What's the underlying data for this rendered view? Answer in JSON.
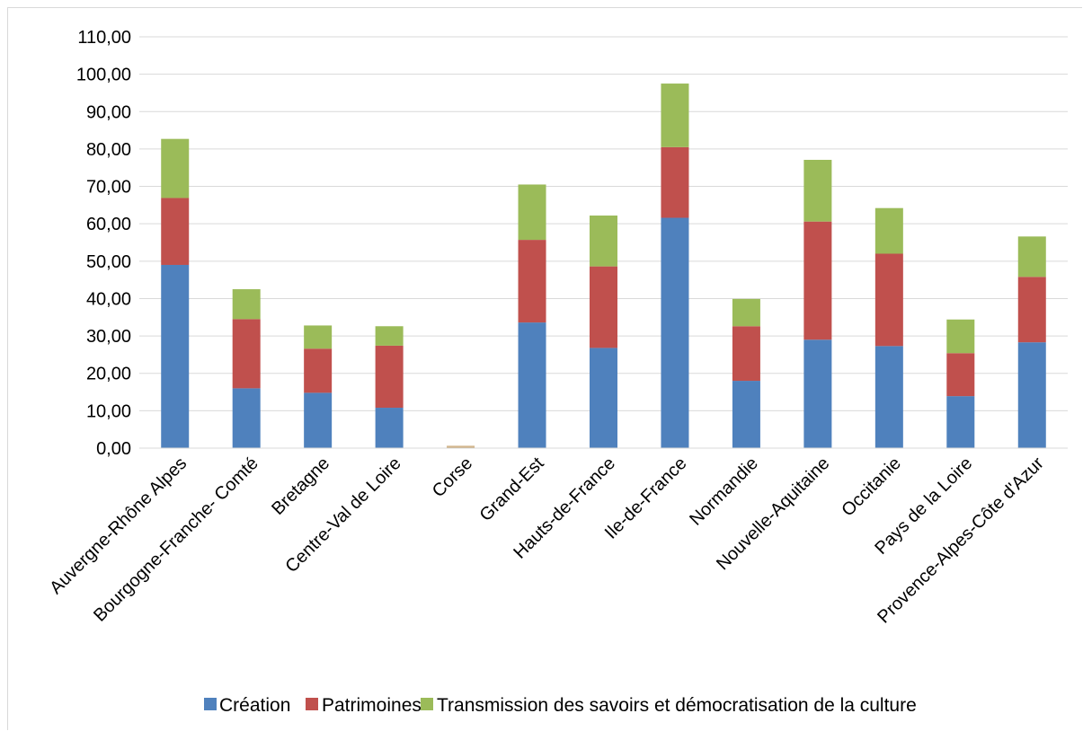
{
  "chart_data": {
    "type": "bar",
    "stacked": true,
    "categories": [
      "Auvergne-Rhône Alpes",
      "Bourgogne-Franche- Comté",
      "Bretagne",
      "Centre-Val de Loire",
      "Corse",
      "Grand-Est",
      "Hauts-de-France",
      "Ile-de-France",
      "Normandie",
      "Nouvelle-Aquitaine",
      "Occitanie",
      "Pays de la Loire",
      "Provence-Alpes-Côte d'Azur"
    ],
    "series": [
      {
        "name": "Création",
        "color": "#4f81bd",
        "values": [
          49.0,
          16.0,
          14.8,
          10.8,
          0.3,
          33.6,
          26.8,
          61.6,
          18.0,
          29.0,
          27.3,
          13.9,
          28.3
        ]
      },
      {
        "name": "Patrimoines",
        "color": "#c0504d",
        "values": [
          17.9,
          18.5,
          11.8,
          16.6,
          0.1,
          22.1,
          21.8,
          18.9,
          14.6,
          31.6,
          24.7,
          11.5,
          17.5
        ]
      },
      {
        "name": "Transmission des savoirs et démocratisation de la culture",
        "color": "#9bbb59",
        "values": [
          15.8,
          8.0,
          6.2,
          5.2,
          0.2,
          14.8,
          13.6,
          17.0,
          7.3,
          16.5,
          12.2,
          9.0,
          10.8
        ]
      }
    ],
    "corse_bar_color": "#c5a06b",
    "ylim": [
      0,
      110
    ],
    "yticks": [
      "0,00",
      "10,00",
      "20,00",
      "30,00",
      "40,00",
      "50,00",
      "60,00",
      "70,00",
      "80,00",
      "90,00",
      "100,00",
      "110,00"
    ],
    "grid": true,
    "legend_position": "bottom",
    "title": "",
    "xlabel": "",
    "ylabel": ""
  }
}
